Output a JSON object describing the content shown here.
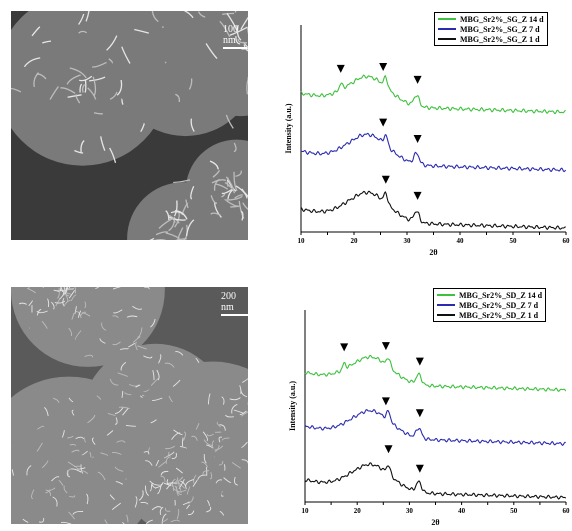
{
  "panels": [
    {
      "id": "top",
      "sem_scale": "100 nm",
      "sem_style": "wavy-flakes"
    },
    {
      "id": "bottom",
      "sem_scale": "200 nm",
      "sem_style": "dense-flakes"
    }
  ],
  "chart_data": [
    {
      "type": "line",
      "xlabel": "2θ",
      "ylabel": "Intensity (a.u.)",
      "xlim": [
        10,
        60
      ],
      "x_ticks": [
        "10",
        "15",
        "20",
        "25",
        "30",
        "35",
        "40",
        "45",
        "50",
        "55",
        "60"
      ],
      "legend_position": "top-right",
      "series": [
        {
          "name": "MBG_Sr2%_SG_Z 14 d",
          "color": "#3ec13e",
          "offset": 2,
          "markers": [
            17.5,
            25.5,
            32
          ]
        },
        {
          "name": "MBG_Sr2%_SG_Z 7 d",
          "color": "#2b2bb0",
          "offset": 1,
          "markers": [
            25.5,
            32
          ]
        },
        {
          "name": "MBG_Sr2%_SG_Z 1 d",
          "color": "#111111",
          "offset": 0,
          "markers": [
            26,
            32
          ]
        }
      ]
    },
    {
      "type": "line",
      "xlabel": "2θ",
      "ylabel": "Intensity (a.u.)",
      "xlim": [
        10,
        60
      ],
      "x_ticks": [
        "10",
        "15",
        "20",
        "25",
        "30",
        "35",
        "40",
        "45",
        "50",
        "55",
        "60"
      ],
      "legend_position": "top-right",
      "series": [
        {
          "name": "MBG_Sr2%_SD_Z 14 d",
          "color": "#3ec13e",
          "offset": 2,
          "markers": [
            17.5,
            25.5,
            32
          ]
        },
        {
          "name": "MBG_Sr2%_SD_Z 7 d",
          "color": "#2b2bb0",
          "offset": 1,
          "markers": [
            25.5,
            32
          ]
        },
        {
          "name": "MBG_Sr2%_SD_Z 1 d",
          "color": "#111111",
          "offset": 0,
          "markers": [
            26,
            32
          ]
        }
      ]
    }
  ]
}
